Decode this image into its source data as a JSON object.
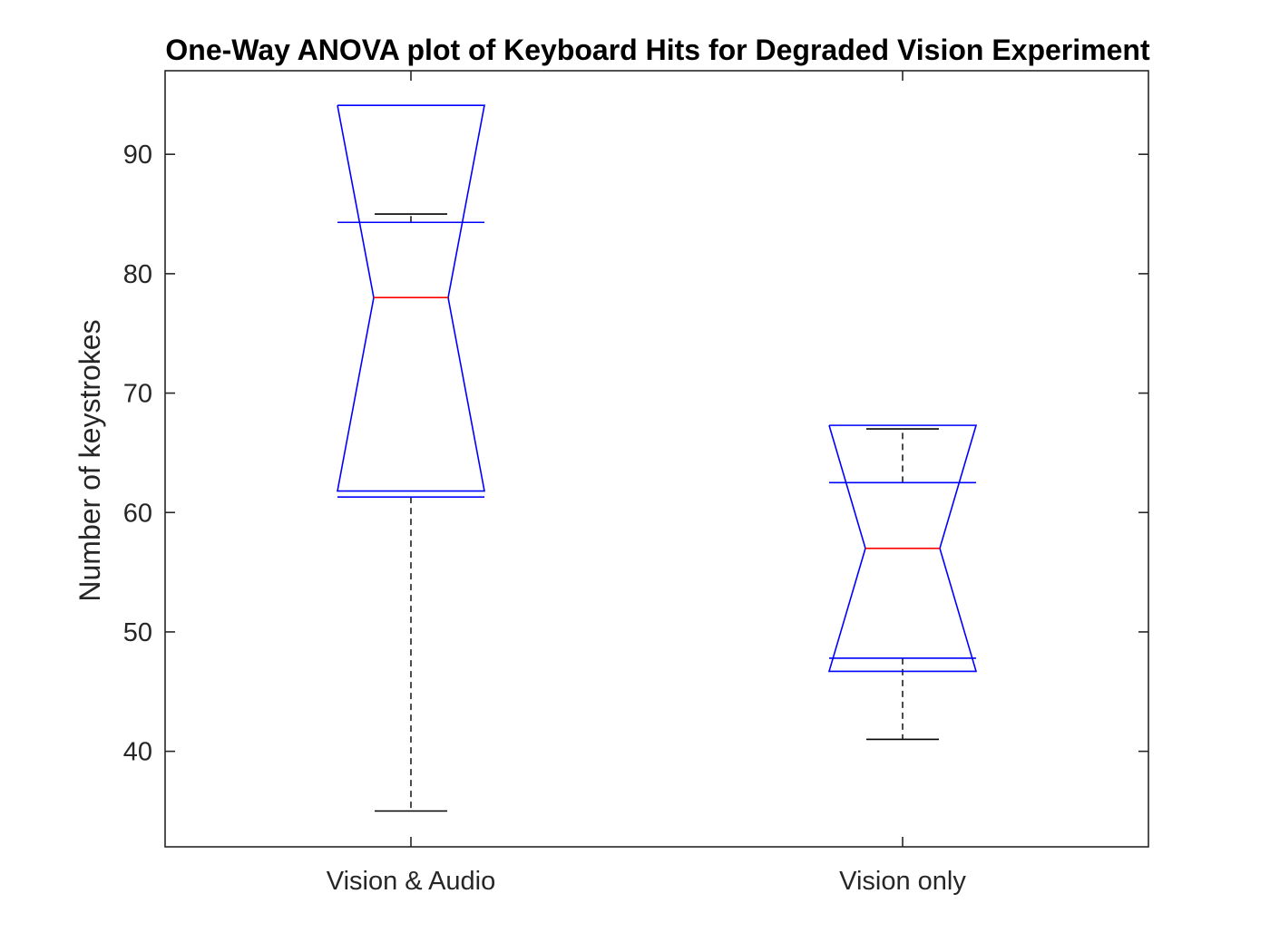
{
  "chart_data": {
    "type": "box",
    "title": "One-Way ANOVA plot of Keyboard Hits for Degraded Vision Experiment",
    "xlabel": "",
    "ylabel": "Number of keystrokes",
    "ylim": [
      32,
      97
    ],
    "yticks": [
      40,
      50,
      60,
      70,
      80,
      90
    ],
    "categories": [
      "Vision & Audio",
      "Vision only"
    ],
    "notched": true,
    "grid": false,
    "series": [
      {
        "category": "Vision & Audio",
        "whisker_low": 35,
        "q1": 61.3,
        "median": 78,
        "q3": 84.3,
        "whisker_high": 85,
        "notch_low": 61.8,
        "notch_high": 94.1
      },
      {
        "category": "Vision only",
        "whisker_low": 41,
        "q1": 47.8,
        "median": 57,
        "q3": 62.5,
        "whisker_high": 67,
        "notch_low": 46.7,
        "notch_high": 67.3
      }
    ],
    "colors": {
      "box": "#0000ff",
      "median": "#ff0000",
      "whisker": "#000000",
      "axes": "#262626"
    }
  }
}
